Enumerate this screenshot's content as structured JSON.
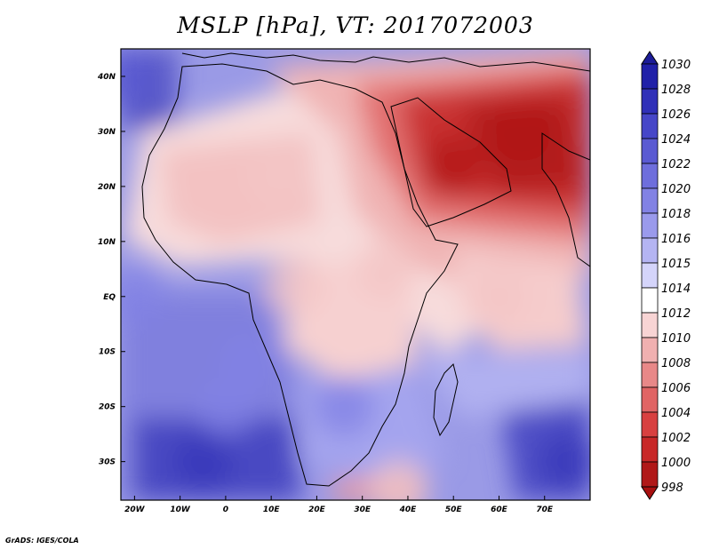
{
  "title": "MSLP [hPa], VT: 2017072003",
  "credit": "GrADS: IGES/COLA",
  "map": {
    "lon_range": [
      -23,
      80
    ],
    "lat_range": [
      -37,
      45
    ],
    "lon_ticks": [
      {
        "v": -20,
        "label": "20W"
      },
      {
        "v": -10,
        "label": "10W"
      },
      {
        "v": 0,
        "label": "0"
      },
      {
        "v": 10,
        "label": "10E"
      },
      {
        "v": 20,
        "label": "20E"
      },
      {
        "v": 30,
        "label": "30E"
      },
      {
        "v": 40,
        "label": "40E"
      },
      {
        "v": 50,
        "label": "50E"
      },
      {
        "v": 60,
        "label": "60E"
      },
      {
        "v": 70,
        "label": "70E"
      }
    ],
    "lat_ticks": [
      {
        "v": 40,
        "label": "40N"
      },
      {
        "v": 30,
        "label": "30N"
      },
      {
        "v": 20,
        "label": "20N"
      },
      {
        "v": 10,
        "label": "10N"
      },
      {
        "v": 0,
        "label": "EQ"
      },
      {
        "v": -10,
        "label": "10S"
      },
      {
        "v": -20,
        "label": "20S"
      },
      {
        "v": -30,
        "label": "30S"
      }
    ],
    "pressure_features": [
      {
        "lon": 50,
        "lat": 24,
        "value": 998
      },
      {
        "lon": 65,
        "lat": 30,
        "value": 999
      },
      {
        "lon": 12,
        "lat": 22,
        "value": 1011
      },
      {
        "lon": 35,
        "lat": 5,
        "value": 1010
      },
      {
        "lon": 60,
        "lat": 0,
        "value": 1011
      },
      {
        "lon": 15,
        "lat": 2,
        "value": 1013
      },
      {
        "lon": 38,
        "lat": -35,
        "value": 1010
      },
      {
        "lon": -5,
        "lat": -30,
        "value": 1027
      },
      {
        "lon": 75,
        "lat": -30,
        "value": 1026
      },
      {
        "lon": -22,
        "lat": 40,
        "value": 1025
      },
      {
        "lon": -20,
        "lat": 0,
        "value": 1020
      },
      {
        "lon": 5,
        "lat": -12,
        "value": 1021
      },
      {
        "lon": 26,
        "lat": -20,
        "value": 1022
      },
      {
        "lon": 0,
        "lat": -20,
        "value": 1023
      }
    ]
  },
  "colorbar": {
    "labels": [
      "1030",
      "1028",
      "1026",
      "1024",
      "1022",
      "1020",
      "1018",
      "1016",
      "1015",
      "1014",
      "1012",
      "1010",
      "1008",
      "1006",
      "1004",
      "1002",
      "1000",
      "998"
    ],
    "colors": [
      "#2020a8",
      "#3030b8",
      "#4646c8",
      "#5a5ad2",
      "#6e6edc",
      "#8282e4",
      "#9a9aec",
      "#b4b4f2",
      "#d4d4fa",
      "#ffffff",
      "#f8d4d4",
      "#f0b0b0",
      "#e88888",
      "#e06464",
      "#d84040",
      "#c82828",
      "#b01818"
    ],
    "arrow_top_color": "#1c1c98",
    "arrow_bottom_color": "#a81010"
  }
}
